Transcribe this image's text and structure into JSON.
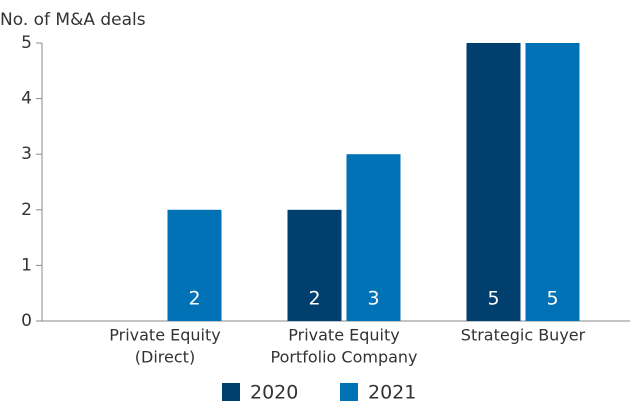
{
  "chart_data": {
    "type": "bar",
    "y_label": "No. of M&A deals",
    "categories": [
      [
        "Private Equity",
        "(Direct)"
      ],
      [
        "Private Equity",
        "Portfolio Company"
      ],
      [
        "Strategic Buyer"
      ]
    ],
    "series": [
      {
        "name": "2020",
        "color": "#003f6e",
        "values": [
          0,
          2,
          5
        ],
        "value_labels": [
          null,
          "2",
          "5"
        ]
      },
      {
        "name": "2021",
        "color": "#0072b5",
        "values": [
          2,
          3,
          5
        ],
        "value_labels": [
          "2",
          "3",
          "5"
        ]
      }
    ],
    "ylim": [
      0,
      5
    ],
    "yticks": [
      0,
      1,
      2,
      3,
      4,
      5
    ],
    "legend": "bottom"
  }
}
